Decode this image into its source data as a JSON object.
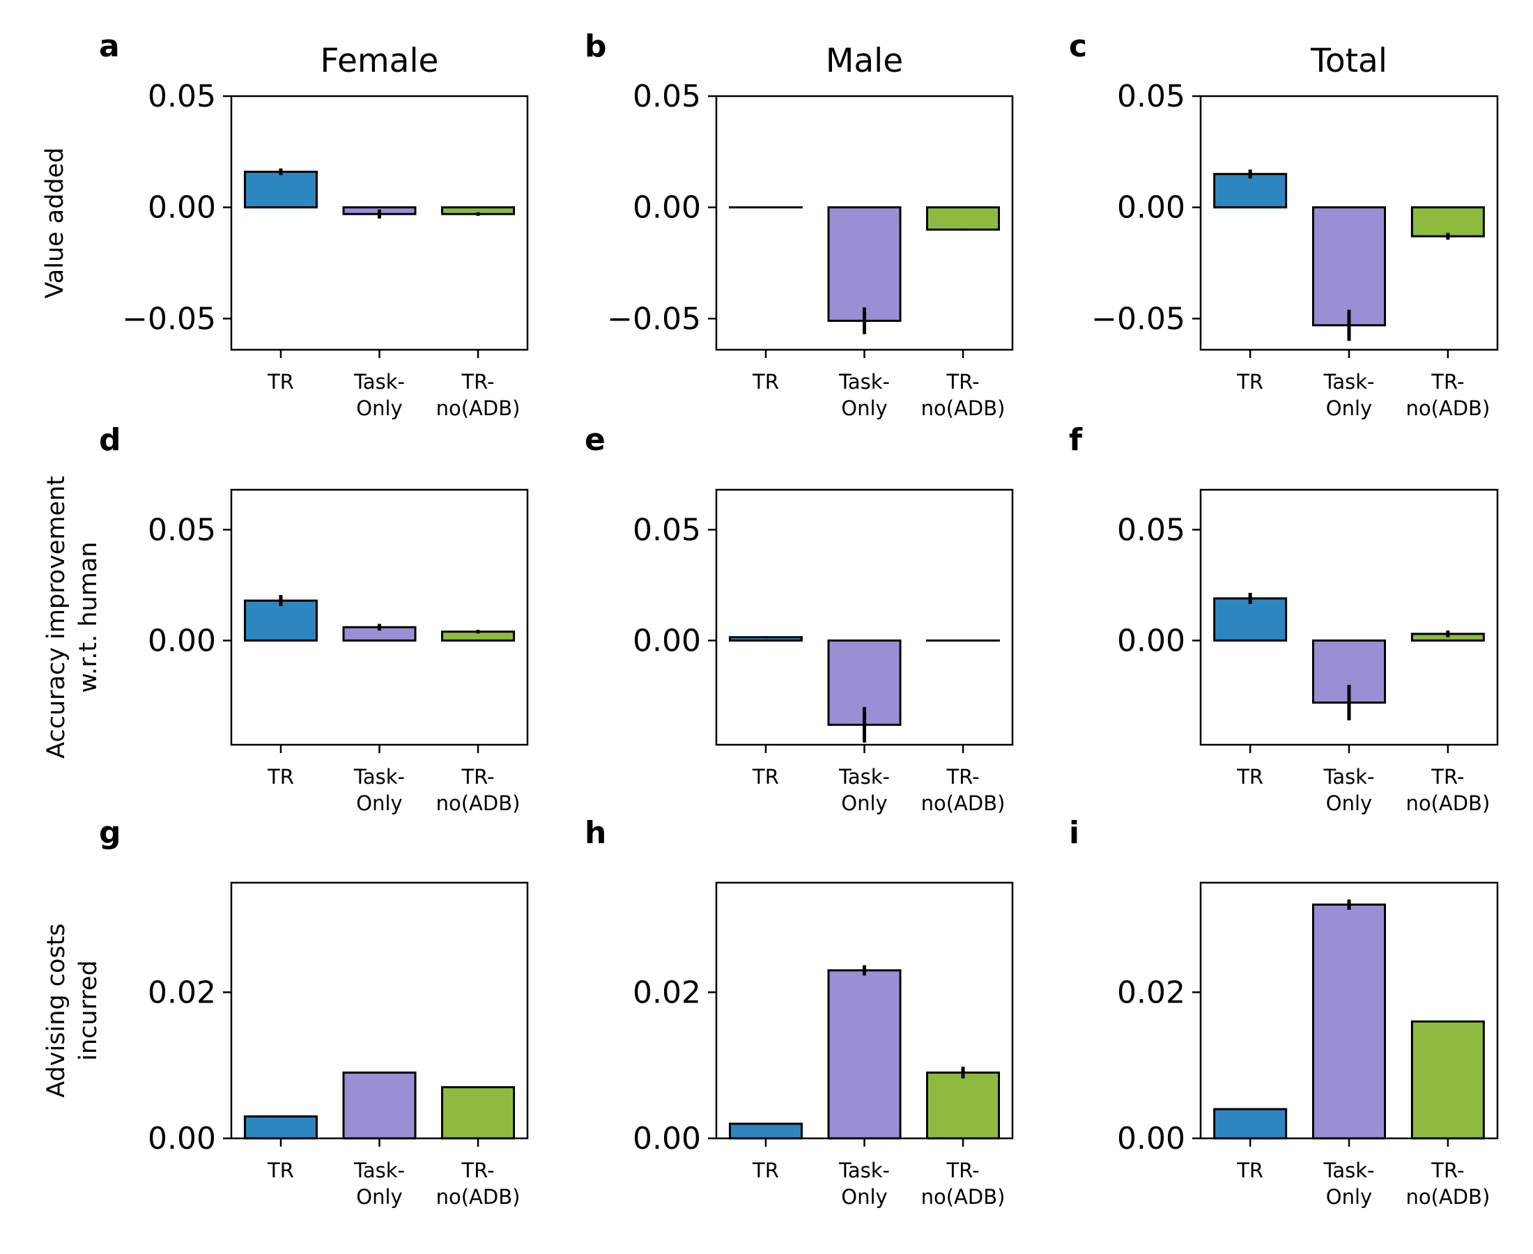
{
  "chart_data": {
    "type": "bar",
    "column_titles": [
      "Female",
      "Male",
      "Total"
    ],
    "row_ylabels": [
      [
        "Value added"
      ],
      [
        "Accuracy improvement",
        "w.r.t. human"
      ],
      [
        "Advising costs",
        "incurred"
      ]
    ],
    "categories": [
      [
        "TR"
      ],
      [
        "Task-",
        "Only"
      ],
      [
        "TR-",
        "no(ADB)"
      ]
    ],
    "colors": [
      "#2e86c1",
      "#9a8fd4",
      "#8ebb3f"
    ],
    "row_axes": [
      {
        "ylim": [
          -0.064,
          0.05
        ],
        "ticks": [
          -0.05,
          0.0,
          0.05
        ],
        "tick_labels": [
          "−0.05",
          "0.00",
          "0.05"
        ]
      },
      {
        "ylim": [
          -0.047,
          0.068
        ],
        "ticks": [
          0.0,
          0.05
        ],
        "tick_labels": [
          "0.00",
          "0.05"
        ]
      },
      {
        "ylim": [
          0.0,
          0.035
        ],
        "ticks": [
          0.0,
          0.02
        ],
        "tick_labels": [
          "0.00",
          "0.02"
        ]
      }
    ],
    "panels": [
      {
        "letter": "a",
        "row": 0,
        "col": 0,
        "values": [
          0.016,
          -0.003,
          -0.003
        ],
        "errors": [
          0.0015,
          0.002,
          0.0008
        ]
      },
      {
        "letter": "b",
        "row": 0,
        "col": 1,
        "values": [
          0.0,
          -0.051,
          -0.01
        ],
        "errors": [
          0.0,
          0.006,
          0.0005
        ]
      },
      {
        "letter": "c",
        "row": 0,
        "col": 2,
        "values": [
          0.015,
          -0.053,
          -0.013
        ],
        "errors": [
          0.002,
          0.007,
          0.0015
        ]
      },
      {
        "letter": "d",
        "row": 1,
        "col": 0,
        "values": [
          0.018,
          0.006,
          0.004
        ],
        "errors": [
          0.0025,
          0.0015,
          0.0008
        ]
      },
      {
        "letter": "e",
        "row": 1,
        "col": 1,
        "values": [
          0.0015,
          -0.038,
          0.0
        ],
        "errors": [
          0.0005,
          0.008,
          0.0
        ]
      },
      {
        "letter": "f",
        "row": 1,
        "col": 2,
        "values": [
          0.019,
          -0.028,
          0.003
        ],
        "errors": [
          0.0025,
          0.008,
          0.0015
        ]
      },
      {
        "letter": "g",
        "row": 2,
        "col": 0,
        "values": [
          0.003,
          0.009,
          0.007
        ],
        "errors": [
          0.0001,
          0.0001,
          0.0001
        ]
      },
      {
        "letter": "h",
        "row": 2,
        "col": 1,
        "values": [
          0.002,
          0.023,
          0.009
        ],
        "errors": [
          0.0001,
          0.0007,
          0.0008
        ]
      },
      {
        "letter": "i",
        "row": 2,
        "col": 2,
        "values": [
          0.004,
          0.032,
          0.016
        ],
        "errors": [
          0.0001,
          0.0007,
          0.0001
        ]
      }
    ]
  }
}
